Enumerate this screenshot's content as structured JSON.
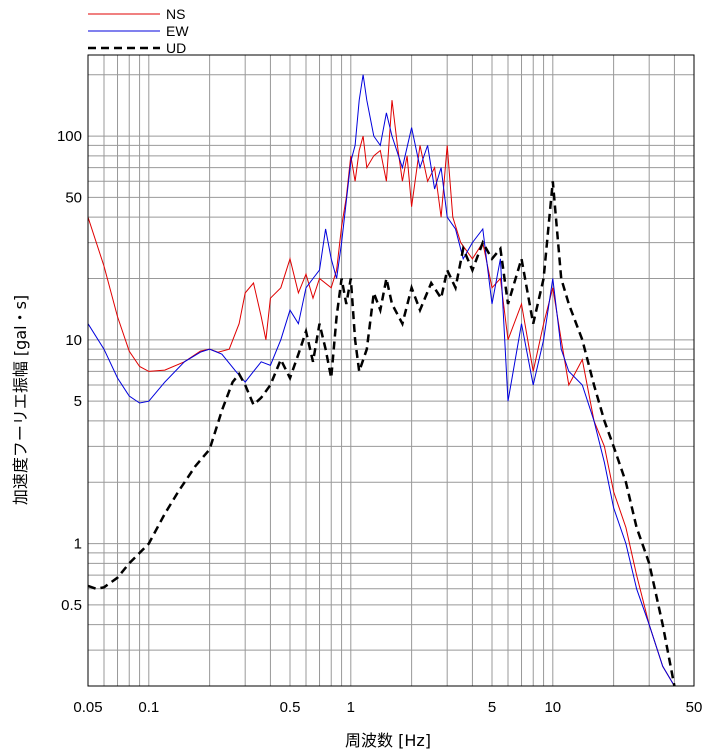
{
  "chart_data": {
    "type": "line",
    "title": "",
    "xlabel": "周波数 [Hz]",
    "ylabel": "加速度フーリエ振幅 [gal・s]",
    "xscale": "log",
    "yscale": "log",
    "xlim": [
      0.05,
      50
    ],
    "ylim": [
      0.2,
      250
    ],
    "grid": true,
    "legend_position": "top-left",
    "x_tick_labels": [
      "0.05",
      "0.1",
      "0.5",
      "1",
      "5",
      "10",
      "50"
    ],
    "x_tick_values": [
      0.05,
      0.1,
      0.5,
      1,
      5,
      10,
      50
    ],
    "y_tick_labels": [
      "0.5",
      "1",
      "5",
      "10",
      "50",
      "100"
    ],
    "y_tick_values": [
      0.5,
      1,
      5,
      10,
      50,
      100
    ],
    "series": [
      {
        "name": "NS",
        "color": "#e00000",
        "style": "solid",
        "points": [
          [
            0.05,
            40
          ],
          [
            0.06,
            23
          ],
          [
            0.07,
            13
          ],
          [
            0.08,
            8.8
          ],
          [
            0.09,
            7.4
          ],
          [
            0.1,
            7.0
          ],
          [
            0.12,
            7.1
          ],
          [
            0.15,
            7.8
          ],
          [
            0.18,
            8.8
          ],
          [
            0.2,
            9.0
          ],
          [
            0.22,
            8.7
          ],
          [
            0.25,
            9.0
          ],
          [
            0.28,
            12
          ],
          [
            0.3,
            17
          ],
          [
            0.33,
            19
          ],
          [
            0.36,
            13
          ],
          [
            0.38,
            10
          ],
          [
            0.4,
            16
          ],
          [
            0.45,
            18
          ],
          [
            0.5,
            25
          ],
          [
            0.55,
            17
          ],
          [
            0.6,
            21
          ],
          [
            0.65,
            16
          ],
          [
            0.7,
            20
          ],
          [
            0.8,
            18
          ],
          [
            0.85,
            22
          ],
          [
            0.9,
            36
          ],
          [
            0.95,
            50
          ],
          [
            1.0,
            80
          ],
          [
            1.05,
            60
          ],
          [
            1.1,
            85
          ],
          [
            1.15,
            100
          ],
          [
            1.2,
            70
          ],
          [
            1.3,
            80
          ],
          [
            1.4,
            85
          ],
          [
            1.5,
            60
          ],
          [
            1.6,
            150
          ],
          [
            1.7,
            90
          ],
          [
            1.8,
            60
          ],
          [
            1.9,
            80
          ],
          [
            2.0,
            45
          ],
          [
            2.2,
            90
          ],
          [
            2.4,
            60
          ],
          [
            2.6,
            70
          ],
          [
            2.8,
            40
          ],
          [
            3.0,
            90
          ],
          [
            3.2,
            40
          ],
          [
            3.5,
            30
          ],
          [
            4.0,
            25
          ],
          [
            4.5,
            30
          ],
          [
            5.0,
            18
          ],
          [
            5.5,
            20
          ],
          [
            6.0,
            10
          ],
          [
            7.0,
            15
          ],
          [
            8.0,
            7
          ],
          [
            9.0,
            12
          ],
          [
            10.0,
            18
          ],
          [
            11.0,
            10
          ],
          [
            12.0,
            6
          ],
          [
            14.0,
            8
          ],
          [
            16.0,
            4
          ],
          [
            18.0,
            3
          ],
          [
            20.0,
            1.8
          ],
          [
            23.0,
            1.2
          ],
          [
            26.0,
            0.7
          ],
          [
            30.0,
            0.4
          ],
          [
            35.0,
            0.25
          ],
          [
            40.0,
            0.2
          ]
        ]
      },
      {
        "name": "EW",
        "color": "#0000dd",
        "style": "solid",
        "points": [
          [
            0.05,
            12
          ],
          [
            0.06,
            9
          ],
          [
            0.07,
            6.5
          ],
          [
            0.08,
            5.3
          ],
          [
            0.09,
            4.9
          ],
          [
            0.1,
            5.0
          ],
          [
            0.12,
            6.2
          ],
          [
            0.15,
            7.8
          ],
          [
            0.18,
            8.7
          ],
          [
            0.2,
            9.0
          ],
          [
            0.23,
            8.5
          ],
          [
            0.27,
            7.0
          ],
          [
            0.3,
            6.2
          ],
          [
            0.33,
            7.0
          ],
          [
            0.36,
            7.8
          ],
          [
            0.4,
            7.5
          ],
          [
            0.45,
            10
          ],
          [
            0.5,
            14
          ],
          [
            0.55,
            12
          ],
          [
            0.6,
            18
          ],
          [
            0.65,
            20
          ],
          [
            0.7,
            22
          ],
          [
            0.75,
            35
          ],
          [
            0.8,
            25
          ],
          [
            0.85,
            20
          ],
          [
            0.9,
            30
          ],
          [
            1.0,
            75
          ],
          [
            1.05,
            90
          ],
          [
            1.1,
            150
          ],
          [
            1.15,
            200
          ],
          [
            1.2,
            150
          ],
          [
            1.3,
            100
          ],
          [
            1.4,
            90
          ],
          [
            1.5,
            130
          ],
          [
            1.6,
            100
          ],
          [
            1.8,
            70
          ],
          [
            2.0,
            110
          ],
          [
            2.2,
            70
          ],
          [
            2.4,
            90
          ],
          [
            2.6,
            55
          ],
          [
            2.8,
            70
          ],
          [
            3.0,
            40
          ],
          [
            3.3,
            35
          ],
          [
            3.6,
            25
          ],
          [
            4.0,
            30
          ],
          [
            4.5,
            35
          ],
          [
            5.0,
            15
          ],
          [
            5.5,
            25
          ],
          [
            6.0,
            5
          ],
          [
            7.0,
            12
          ],
          [
            8.0,
            6
          ],
          [
            9.0,
            10
          ],
          [
            10.0,
            20
          ],
          [
            11.0,
            9
          ],
          [
            12.0,
            7
          ],
          [
            14.0,
            6
          ],
          [
            16.0,
            4
          ],
          [
            18.0,
            2.5
          ],
          [
            20.0,
            1.5
          ],
          [
            23.0,
            1.0
          ],
          [
            26.0,
            0.6
          ],
          [
            30.0,
            0.4
          ],
          [
            35.0,
            0.25
          ],
          [
            40.0,
            0.2
          ]
        ]
      },
      {
        "name": "UD",
        "color": "#000000",
        "style": "dashed",
        "points": [
          [
            0.05,
            0.62
          ],
          [
            0.055,
            0.6
          ],
          [
            0.06,
            0.61
          ],
          [
            0.07,
            0.68
          ],
          [
            0.08,
            0.8
          ],
          [
            0.09,
            0.9
          ],
          [
            0.1,
            1.0
          ],
          [
            0.12,
            1.4
          ],
          [
            0.14,
            1.8
          ],
          [
            0.17,
            2.4
          ],
          [
            0.2,
            2.9
          ],
          [
            0.23,
            4.5
          ],
          [
            0.26,
            6.2
          ],
          [
            0.28,
            6.8
          ],
          [
            0.3,
            6.0
          ],
          [
            0.33,
            4.8
          ],
          [
            0.36,
            5.2
          ],
          [
            0.4,
            6.0
          ],
          [
            0.45,
            8.0
          ],
          [
            0.5,
            6.5
          ],
          [
            0.55,
            8.5
          ],
          [
            0.6,
            11
          ],
          [
            0.65,
            7.8
          ],
          [
            0.7,
            12
          ],
          [
            0.75,
            9
          ],
          [
            0.8,
            6.5
          ],
          [
            0.85,
            13
          ],
          [
            0.9,
            20
          ],
          [
            0.95,
            15
          ],
          [
            1.0,
            20
          ],
          [
            1.05,
            10
          ],
          [
            1.1,
            7
          ],
          [
            1.2,
            9
          ],
          [
            1.3,
            17
          ],
          [
            1.4,
            14
          ],
          [
            1.5,
            20
          ],
          [
            1.6,
            15
          ],
          [
            1.8,
            12
          ],
          [
            2.0,
            18
          ],
          [
            2.2,
            14
          ],
          [
            2.5,
            19
          ],
          [
            2.8,
            16
          ],
          [
            3.0,
            22
          ],
          [
            3.3,
            18
          ],
          [
            3.6,
            28
          ],
          [
            4.0,
            22
          ],
          [
            4.5,
            30
          ],
          [
            5.0,
            25
          ],
          [
            5.5,
            28
          ],
          [
            6.0,
            15
          ],
          [
            7.0,
            25
          ],
          [
            8.0,
            12
          ],
          [
            9.0,
            20
          ],
          [
            10.0,
            60
          ],
          [
            11.0,
            20
          ],
          [
            12.0,
            15
          ],
          [
            14.0,
            10
          ],
          [
            16.0,
            6
          ],
          [
            18.0,
            4
          ],
          [
            20.0,
            3
          ],
          [
            23.0,
            2
          ],
          [
            26.0,
            1.2
          ],
          [
            30.0,
            0.8
          ],
          [
            35.0,
            0.4
          ],
          [
            40.0,
            0.2
          ]
        ]
      }
    ]
  }
}
